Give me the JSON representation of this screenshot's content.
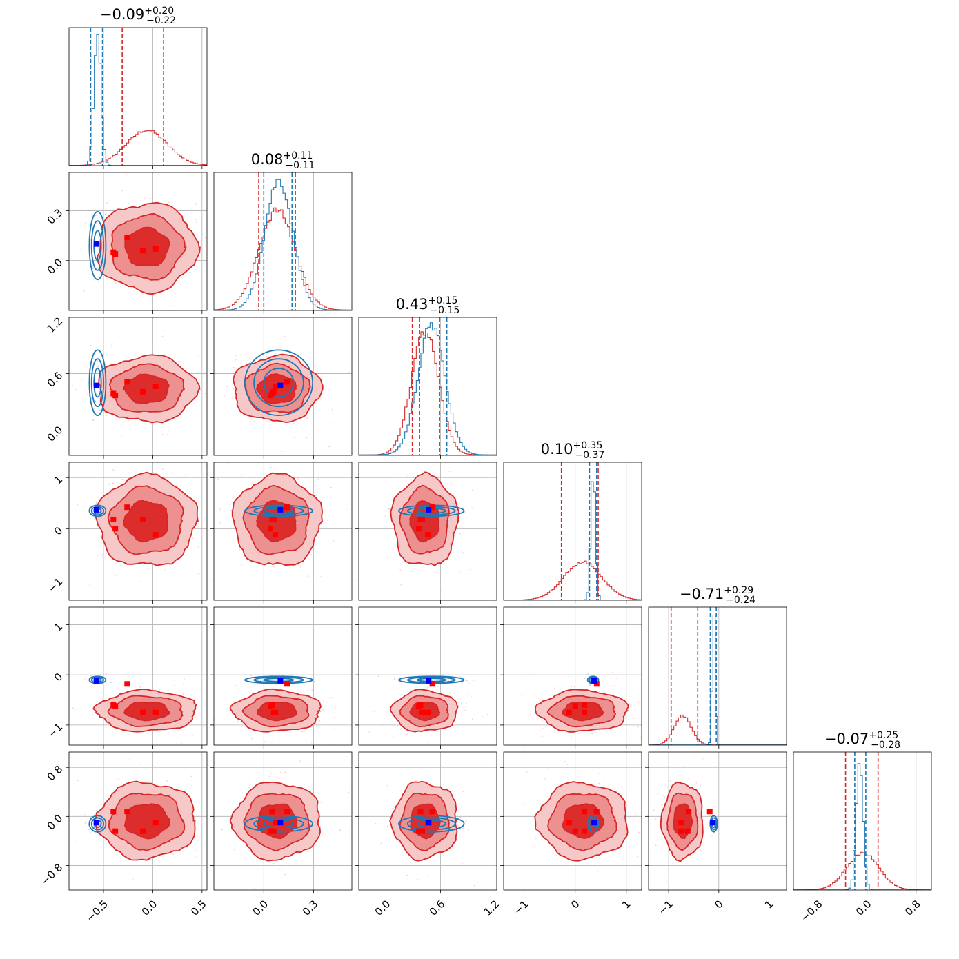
{
  "chart_data": {
    "type": "corner",
    "n_params": 6,
    "colors": {
      "posterior_a": "#d62728",
      "posterior_b": "#1f77b4",
      "marker_a": "#ff0000",
      "marker_b": "#0000ff",
      "grid": "#b0b0b0",
      "scatter_a": "#ffb6c1",
      "scatter_b": "#aec7e8"
    },
    "grid": true,
    "parameters": [
      {
        "title_value": "−0.09",
        "title_plus": "+0.20",
        "title_minus": "−0.22",
        "range": [
          -0.85,
          0.55
        ],
        "ticks": [
          -0.5,
          0.0,
          0.5
        ],
        "tick_labels": [
          "−0.5",
          "0.0",
          "0.5"
        ],
        "quantiles_a": [
          -0.31,
          0.11
        ],
        "quantiles_b": [
          -0.63,
          -0.51
        ],
        "dist_a": {
          "mean": -0.06,
          "sd": 0.21
        },
        "dist_b": {
          "mean": -0.56,
          "sd": 0.035,
          "peak_ratio": 3.7
        }
      },
      {
        "title_value": "0.08",
        "title_plus": "+0.11",
        "title_minus": "−0.11",
        "range": [
          -0.3,
          0.53
        ],
        "ticks": [
          0.0,
          0.3
        ],
        "tick_labels": [
          "0.0",
          "0.3"
        ],
        "quantiles_a": [
          -0.03,
          0.19
        ],
        "quantiles_b": [
          0.0,
          0.17
        ],
        "dist_a": {
          "mean": 0.08,
          "sd": 0.11
        },
        "dist_b": {
          "mean": 0.09,
          "sd": 0.085,
          "peak_ratio": 1.3
        }
      },
      {
        "title_value": "0.43",
        "title_plus": "+0.15",
        "title_minus": "−0.15",
        "range": [
          -0.3,
          1.22
        ],
        "ticks": [
          0.0,
          0.6,
          1.2
        ],
        "tick_labels": [
          "0.0",
          "0.6",
          "1.2"
        ],
        "quantiles_a": [
          0.29,
          0.59
        ],
        "quantiles_b": [
          0.37,
          0.67
        ],
        "dist_a": {
          "mean": 0.43,
          "sd": 0.15
        },
        "dist_b": {
          "mean": 0.5,
          "sd": 0.15,
          "peak_ratio": 1.05
        }
      },
      {
        "title_value": "0.10",
        "title_plus": "+0.35",
        "title_minus": "−0.37",
        "range": [
          -1.4,
          1.3
        ],
        "ticks": [
          -1,
          0,
          1
        ],
        "tick_labels": [
          "−1",
          "0",
          "1"
        ],
        "quantiles_a": [
          -0.27,
          0.45
        ],
        "quantiles_b": [
          0.28,
          0.42
        ],
        "dist_a": {
          "mean": 0.15,
          "sd": 0.37
        },
        "dist_b": {
          "mean": 0.35,
          "sd": 0.045,
          "peak_ratio": 3.4
        }
      },
      {
        "title_value": "−0.71",
        "title_plus": "+0.29",
        "title_minus": "−0.24",
        "range": [
          -1.4,
          1.35
        ],
        "ticks": [
          -1,
          0,
          1
        ],
        "tick_labels": [
          "−1",
          "0",
          "1"
        ],
        "quantiles_a": [
          -0.95,
          -0.42
        ],
        "quantiles_b": [
          -0.17,
          -0.05
        ],
        "dist_a": {
          "mean": -0.72,
          "sd": 0.17
        },
        "dist_b": {
          "mean": -0.1,
          "sd": 0.03,
          "peak_ratio": 4.4
        }
      },
      {
        "title_value": "−0.07",
        "title_plus": "+0.25",
        "title_minus": "−0.28",
        "range": [
          -1.2,
          1.05
        ],
        "ticks": [
          -0.8,
          0.0,
          0.8
        ],
        "tick_labels": [
          "−0.8",
          "0.0",
          "0.8"
        ],
        "quantiles_a": [
          -0.35,
          0.18
        ],
        "quantiles_b": [
          -0.2,
          -0.02
        ],
        "dist_a": {
          "mean": -0.07,
          "sd": 0.26
        },
        "dist_b": {
          "mean": -0.12,
          "sd": 0.055,
          "peak_ratio": 3.5
        }
      }
    ],
    "markers_a": [
      [
        -0.38,
        0.04,
        0.36,
        -0.0,
        -0.62,
        -0.24
      ],
      [
        -0.26,
        0.14,
        0.51,
        0.42,
        -0.18,
        0.08
      ],
      [
        -0.1,
        0.06,
        0.4,
        0.18,
        -0.75,
        -0.24
      ],
      [
        0.03,
        0.07,
        0.46,
        -0.12,
        -0.75,
        -0.1
      ],
      [
        -0.4,
        0.05,
        0.38,
        0.18,
        -0.6,
        0.08
      ]
    ],
    "markers_b": [
      [
        -0.57,
        0.1,
        0.47,
        0.37,
        -0.12,
        -0.1
      ]
    ]
  }
}
